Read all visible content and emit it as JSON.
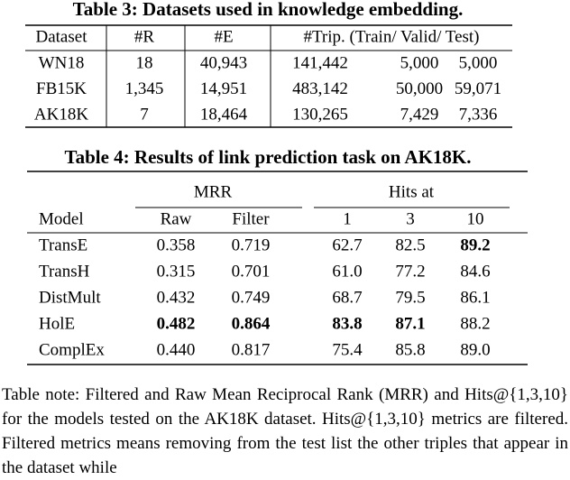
{
  "table3": {
    "title": "Table 3: Datasets used in knowledge embedding.",
    "header": [
      "Dataset",
      "#R",
      "#E",
      "#Trip. (Train/ Valid/ Test)"
    ],
    "rows": [
      [
        "WN18",
        "18",
        "40,943",
        "141,442",
        "5,000",
        "5,000"
      ],
      [
        "FB15K",
        "1,345",
        "14,951",
        "483,142",
        "50,000",
        "59,071"
      ],
      [
        "AK18K",
        "7",
        "18,464",
        "130,265",
        "7,429",
        "7,336"
      ]
    ]
  },
  "table4": {
    "title": "Table 4: Results of link prediction task on AK18K.",
    "group_headers": [
      "MRR",
      "Hits at"
    ],
    "header": [
      "Model",
      "Raw",
      "Filter",
      "1",
      "3",
      "10"
    ],
    "rows": [
      [
        "TransE",
        "0.358",
        "0.719",
        "62.7",
        "82.5",
        {
          "text": "89.2",
          "bold": true
        }
      ],
      [
        "TransH",
        "0.315",
        "0.701",
        "61.0",
        "77.2",
        "84.6"
      ],
      [
        "DistMult",
        "0.432",
        "0.749",
        "68.7",
        "79.5",
        "86.1"
      ],
      [
        "HolE",
        {
          "text": "0.482",
          "bold": true
        },
        {
          "text": "0.864",
          "bold": true
        },
        {
          "text": "83.8",
          "bold": true
        },
        {
          "text": "87.1",
          "bold": true
        },
        "88.2"
      ],
      [
        "ComplEx",
        "0.440",
        "0.817",
        "75.4",
        "85.8",
        "89.0"
      ]
    ]
  },
  "note": "Table note: Filtered and Raw Mean Reciprocal Rank (MRR) and Hits@{1,3,10} for the models tested on the AK18K dataset. Hits@{1,3,10} metrics are filtered. Filtered metrics means removing from the test list the other triples that appear in the dataset while"
}
